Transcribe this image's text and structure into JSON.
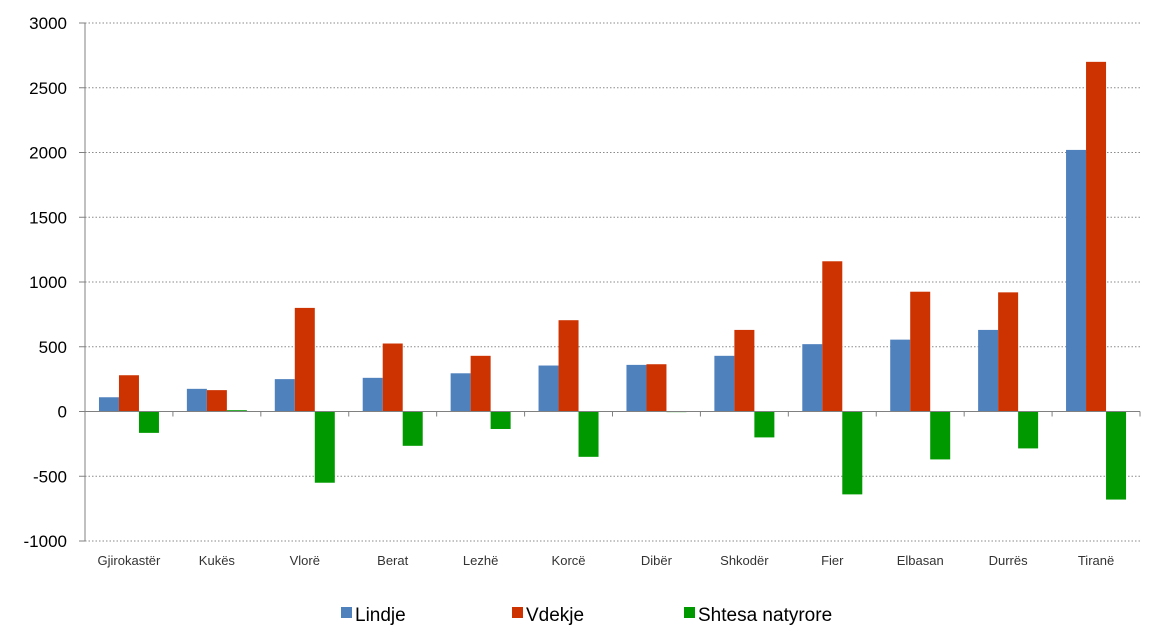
{
  "chart_data": {
    "type": "bar",
    "title": "",
    "xlabel": "",
    "ylabel": "",
    "ylim": [
      -1000,
      3000
    ],
    "yticks": [
      -1000,
      -500,
      0,
      500,
      1000,
      1500,
      2000,
      2500,
      3000
    ],
    "yticks_labels": [
      "-1000",
      "-500",
      "0",
      "500",
      "1000",
      "1500",
      "2000",
      "2500",
      "3000"
    ],
    "grid": true,
    "legend_position": "bottom",
    "categories": [
      "Gjirokastër",
      "Kukës",
      "Vlorë",
      "Berat",
      "Lezhë",
      "Korcë",
      "Dibër",
      "Shkodër",
      "Fier",
      "Elbasan",
      "Durrës",
      "Tiranë"
    ],
    "series": [
      {
        "name": "Lindje",
        "color": "#4F81BD",
        "values": [
          110,
          175,
          250,
          260,
          295,
          355,
          360,
          430,
          520,
          555,
          630,
          2020
        ]
      },
      {
        "name": "Vdekje",
        "color": "#CC3300",
        "values": [
          280,
          165,
          800,
          525,
          430,
          705,
          365,
          630,
          1160,
          925,
          920,
          2700
        ]
      },
      {
        "name": "Shtesa natyrore",
        "color": "#009900",
        "values": [
          -165,
          10,
          -550,
          -265,
          -135,
          -350,
          -5,
          -200,
          -640,
          -370,
          -285,
          -680
        ]
      }
    ]
  }
}
